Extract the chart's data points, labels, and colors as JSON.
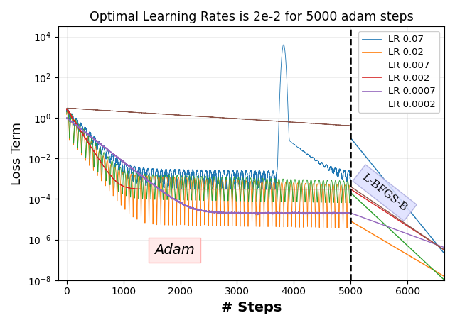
{
  "title": "Optimal Learning Rates is 2e-2 for 5000 adam steps",
  "xlabel": "# Steps",
  "ylabel": "Loss Term",
  "xlim": [
    -150,
    6650
  ],
  "vline_x": 5000,
  "adam_label": "Adam",
  "lbfgs_label": "L-BFGS-B",
  "legend_entries": [
    "LR 0.07",
    "LR 0.02",
    "LR 0.007",
    "LR 0.002",
    "LR 0.0007",
    "LR 0.0002"
  ],
  "line_colors": [
    "#1f77b4",
    "#ff7f0e",
    "#2ca02c",
    "#d62728",
    "#9467bd",
    "#8c564b"
  ],
  "lrs": [
    0.07,
    0.02,
    0.007,
    0.002,
    0.0007,
    0.0002
  ],
  "n_adam": 5000,
  "n_lbfgs": 1650,
  "seed": 7
}
